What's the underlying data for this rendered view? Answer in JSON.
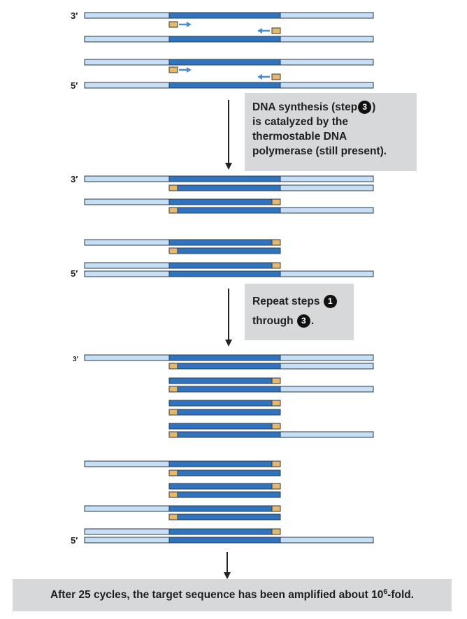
{
  "labels": {
    "three_prime": "3′",
    "five_prime": "5′"
  },
  "callouts": {
    "step3": {
      "line1_before": "DNA synthesis (step",
      "line1_after": ")",
      "line2": "is catalyzed by  the",
      "line3": "thermostable DNA",
      "line4": "polymerase (still present).",
      "badge": "3"
    },
    "repeat": {
      "line1": "Repeat steps",
      "badge_start": "1",
      "line2": "through",
      "badge_end": "3",
      "line2_after": "."
    }
  },
  "summary": {
    "before": "After 25 cycles, the target sequence has been amplified about 10",
    "exponent": "6",
    "after": "-fold."
  },
  "colors": {
    "template_strand": "#c6dff4",
    "target_region": "#2f74c0",
    "primer": "#e9b866",
    "outline": "#2a3a4c",
    "extension_arrow": "#4a8fd1",
    "callout_bg": "#d7d8d9",
    "main_arrow": "#222222"
  }
}
